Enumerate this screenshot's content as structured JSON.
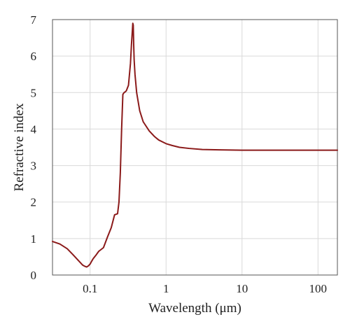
{
  "chart_data": {
    "type": "line",
    "title": "",
    "xlabel": "Wavelength (μm)",
    "ylabel": "Refractive index",
    "xscale": "log",
    "xlim": [
      0.032,
      180
    ],
    "ylim": [
      0,
      7
    ],
    "xticks": [
      {
        "value": 0.1,
        "label": "0.1"
      },
      {
        "value": 1,
        "label": "1"
      },
      {
        "value": 10,
        "label": "10"
      },
      {
        "value": 100,
        "label": "100"
      }
    ],
    "yticks": [
      {
        "value": 0,
        "label": "0"
      },
      {
        "value": 1,
        "label": "1"
      },
      {
        "value": 2,
        "label": "2"
      },
      {
        "value": 3,
        "label": "3"
      },
      {
        "value": 4,
        "label": "4"
      },
      {
        "value": 5,
        "label": "5"
      },
      {
        "value": 6,
        "label": "6"
      },
      {
        "value": 7,
        "label": "7"
      }
    ],
    "grid": true,
    "series_color": "#8b1a1a",
    "series": [
      {
        "x": [
          0.032,
          0.04,
          0.05,
          0.06,
          0.07,
          0.08,
          0.085,
          0.09,
          0.095,
          0.1,
          0.105,
          0.11,
          0.12,
          0.13,
          0.15,
          0.17,
          0.19,
          0.21,
          0.23,
          0.24,
          0.25,
          0.26,
          0.27,
          0.28,
          0.29,
          0.3,
          0.32,
          0.34,
          0.35,
          0.36,
          0.365,
          0.37,
          0.375,
          0.38,
          0.39,
          0.41,
          0.45,
          0.5,
          0.6,
          0.7,
          0.8,
          1,
          1.2,
          1.5,
          2,
          3,
          5,
          10,
          20,
          50,
          100,
          180
        ],
        "y": [
          0.92,
          0.85,
          0.72,
          0.55,
          0.4,
          0.27,
          0.24,
          0.22,
          0.25,
          0.3,
          0.38,
          0.45,
          0.55,
          0.65,
          0.75,
          1.05,
          1.3,
          1.65,
          1.68,
          2.0,
          2.8,
          4.0,
          4.95,
          5.0,
          5.02,
          5.05,
          5.2,
          5.8,
          6.3,
          6.7,
          6.9,
          6.85,
          6.3,
          5.9,
          5.5,
          5.0,
          4.5,
          4.2,
          3.95,
          3.8,
          3.7,
          3.6,
          3.55,
          3.5,
          3.47,
          3.44,
          3.43,
          3.42,
          3.42,
          3.42,
          3.42,
          3.42
        ]
      }
    ]
  }
}
